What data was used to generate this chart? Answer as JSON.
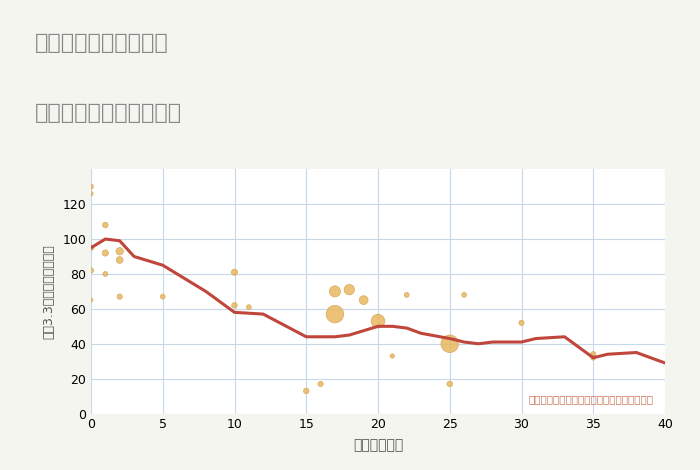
{
  "title_line1": "兵庫県三田市駅前町の",
  "title_line2": "築年数別中古戸建て価格",
  "xlabel": "築年数（年）",
  "ylabel": "坪（3.3㎡）単価（万円）",
  "annotation": "円の大きさは、取引のあった物件面積を示す",
  "bg_color": "#f5f5f0",
  "plot_bg_color": "#ffffff",
  "grid_color": "#c8d8e8",
  "title_color": "#888888",
  "line_color": "#c0453a",
  "scatter_color": "#e8b860",
  "scatter_edge_color": "#d4a050",
  "annotation_color": "#c87050",
  "xlim": [
    0,
    40
  ],
  "ylim": [
    0,
    140
  ],
  "xticks": [
    0,
    5,
    10,
    15,
    20,
    25,
    30,
    35,
    40
  ],
  "yticks": [
    0,
    20,
    40,
    60,
    80,
    100,
    120
  ],
  "line_x": [
    0,
    1,
    2,
    3,
    5,
    8,
    10,
    12,
    15,
    17,
    18,
    20,
    21,
    22,
    23,
    25,
    26,
    27,
    28,
    30,
    31,
    33,
    35,
    36,
    38,
    40
  ],
  "line_y": [
    95,
    100,
    99,
    90,
    85,
    70,
    58,
    57,
    44,
    44,
    45,
    50,
    50,
    49,
    46,
    43,
    41,
    40,
    41,
    41,
    43,
    44,
    32,
    34,
    35,
    29
  ],
  "scatter_x": [
    0,
    0,
    0,
    0,
    0,
    1,
    1,
    1,
    2,
    2,
    2,
    5,
    10,
    10,
    11,
    15,
    16,
    17,
    17,
    18,
    19,
    20,
    21,
    22,
    25,
    25,
    26,
    30,
    35,
    35
  ],
  "scatter_y": [
    130,
    126,
    95,
    82,
    65,
    108,
    92,
    80,
    93,
    88,
    67,
    67,
    81,
    62,
    61,
    13,
    17,
    57,
    70,
    71,
    65,
    53,
    33,
    68,
    17,
    40,
    68,
    52,
    34,
    32
  ],
  "scatter_size": [
    15,
    12,
    20,
    18,
    10,
    20,
    25,
    15,
    35,
    30,
    18,
    15,
    25,
    20,
    15,
    20,
    18,
    200,
    80,
    70,
    50,
    120,
    12,
    15,
    20,
    200,
    15,
    18,
    18,
    15
  ]
}
